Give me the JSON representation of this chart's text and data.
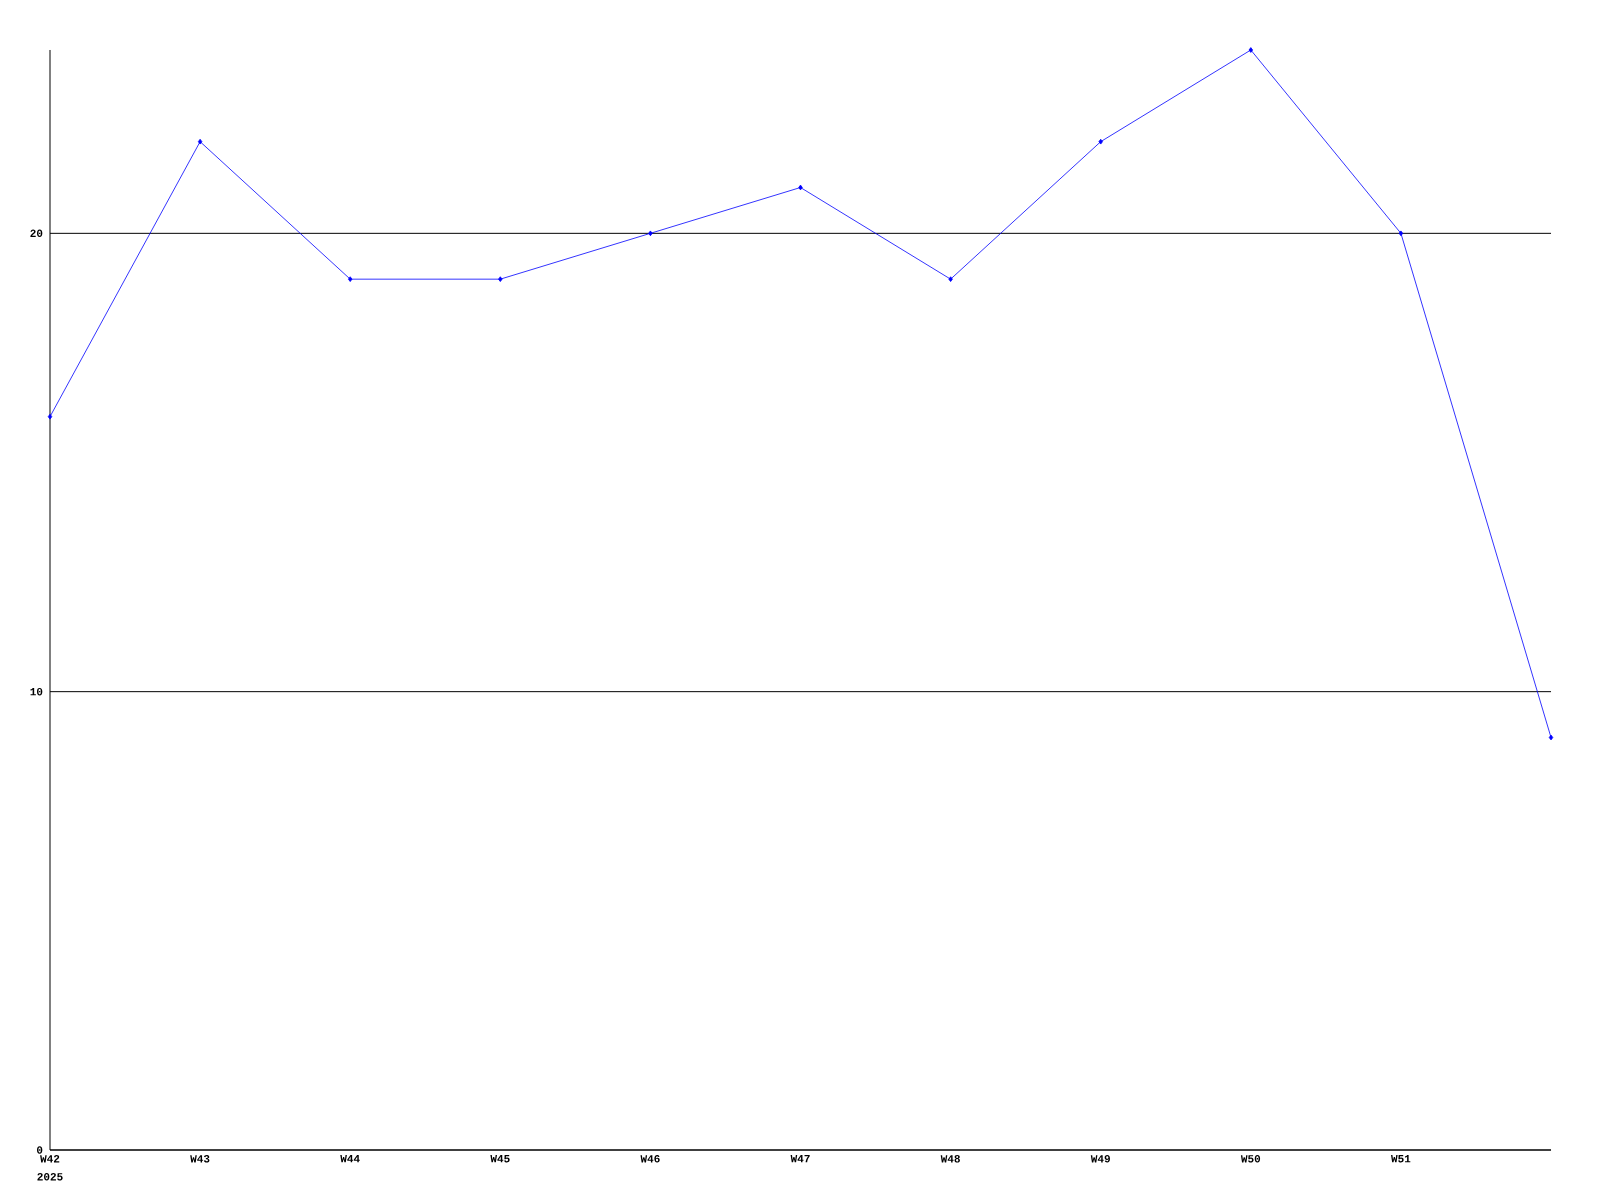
{
  "chart_data": {
    "type": "line",
    "categories": [
      "W42",
      "W43",
      "W44",
      "W45",
      "W46",
      "W47",
      "W48",
      "W49",
      "W50",
      "W51",
      null
    ],
    "series": [
      {
        "color": "#0000ff",
        "values": [
          16,
          22,
          19,
          19,
          20,
          21,
          19,
          22,
          24,
          20,
          9
        ]
      }
    ],
    "ylim": [
      0,
      24
    ],
    "yticks": [
      0,
      10,
      20
    ],
    "grid": "y",
    "marker": "diamond",
    "line_style": "solid",
    "annotations": [
      "2025"
    ]
  }
}
